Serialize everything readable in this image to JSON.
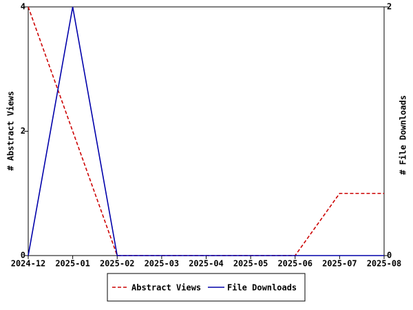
{
  "chart_data": {
    "type": "line",
    "categories": [
      "2024-12",
      "2025-01",
      "2025-02",
      "2025-03",
      "2025-04",
      "2025-05",
      "2025-06",
      "2025-07",
      "2025-08"
    ],
    "series": [
      {
        "name": "Abstract Views",
        "color": "#cc0000",
        "dash": true,
        "values": [
          4,
          2,
          0,
          0,
          0,
          0,
          0,
          1,
          1
        ]
      },
      {
        "name": "File Downloads",
        "color": "#0000aa",
        "dash": false,
        "axis": "y2",
        "values": [
          0,
          2,
          0,
          0,
          0,
          0,
          0,
          0,
          0
        ]
      }
    ],
    "y_label": "# Abstract Views",
    "y2_label": "# File Downloads",
    "ylim": [
      0,
      4
    ],
    "yticks": [
      0,
      2,
      4
    ],
    "y2lim": [
      0,
      2
    ],
    "y2ticks": [
      0,
      2
    ],
    "legend": "bottom"
  }
}
